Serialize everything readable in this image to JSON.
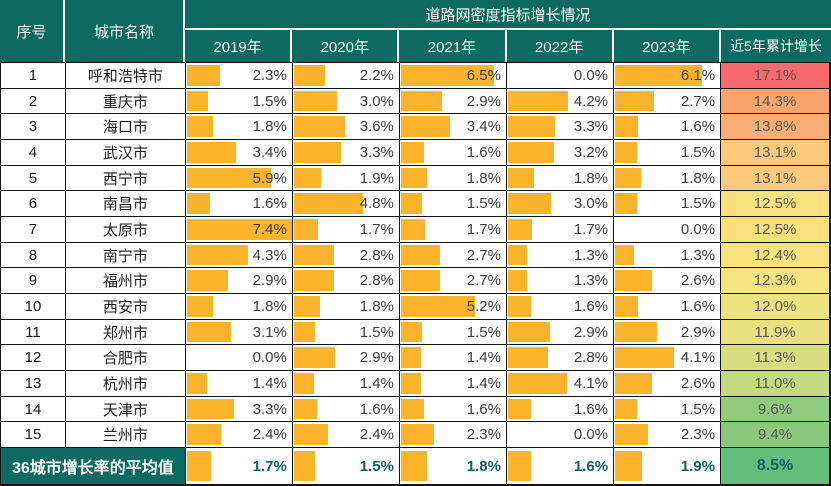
{
  "title": "道路网密度指标增长情况",
  "columns": {
    "index": "序号",
    "city": "城市名称",
    "years": [
      "2019年",
      "2020年",
      "2021年",
      "2022年",
      "2023年"
    ],
    "cumulative": "近5年累计增长"
  },
  "colors": {
    "header_bg": "#0C6A62",
    "bar": "#FBB42C",
    "value_text": "#3E3E3E",
    "cumulative_text": "#595959",
    "average_value_text": "#0E6065"
  },
  "bar_scale_max": 7.4,
  "rows": [
    {
      "no": "1",
      "city": "呼和浩特市",
      "values": [
        2.3,
        2.2,
        6.5,
        0.0,
        6.1
      ],
      "labels": [
        "2.3%",
        "2.2%",
        "6.5%",
        "0.0%",
        "6.1%"
      ],
      "cum_label": "17.1%",
      "cum_bg": "#F8696B"
    },
    {
      "no": "2",
      "city": "重庆市",
      "values": [
        1.5,
        3.0,
        2.9,
        4.2,
        2.7
      ],
      "labels": [
        "1.5%",
        "3.0%",
        "2.9%",
        "4.2%",
        "2.7%"
      ],
      "cum_label": "14.3%",
      "cum_bg": "#F9A36D"
    },
    {
      "no": "3",
      "city": "海口市",
      "values": [
        1.8,
        3.6,
        3.4,
        3.3,
        1.6
      ],
      "labels": [
        "1.8%",
        "3.6%",
        "3.4%",
        "3.3%",
        "1.6%"
      ],
      "cum_label": "13.8%",
      "cum_bg": "#FAAD74"
    },
    {
      "no": "4",
      "city": "武汉市",
      "values": [
        3.4,
        3.3,
        1.6,
        3.2,
        1.5
      ],
      "labels": [
        "3.4%",
        "3.3%",
        "1.6%",
        "3.2%",
        "1.5%"
      ],
      "cum_label": "13.1%",
      "cum_bg": "#FCCA7A"
    },
    {
      "no": "5",
      "city": "西宁市",
      "values": [
        5.9,
        1.9,
        1.8,
        1.8,
        1.8
      ],
      "labels": [
        "5.9%",
        "1.9%",
        "1.8%",
        "1.8%",
        "1.8%"
      ],
      "cum_label": "13.1%",
      "cum_bg": "#FCCA7A"
    },
    {
      "no": "6",
      "city": "南昌市",
      "values": [
        1.6,
        4.8,
        1.5,
        3.0,
        1.5
      ],
      "labels": [
        "1.6%",
        "4.8%",
        "1.5%",
        "3.0%",
        "1.5%"
      ],
      "cum_label": "12.5%",
      "cum_bg": "#FBE07E"
    },
    {
      "no": "7",
      "city": "太原市",
      "values": [
        7.4,
        1.7,
        1.7,
        1.7,
        0.0
      ],
      "labels": [
        "7.4%",
        "1.7%",
        "1.7%",
        "1.7%",
        "0.0%"
      ],
      "cum_label": "12.5%",
      "cum_bg": "#FBE07E"
    },
    {
      "no": "8",
      "city": "南宁市",
      "values": [
        4.3,
        2.8,
        2.7,
        1.3,
        1.3
      ],
      "labels": [
        "4.3%",
        "2.8%",
        "2.7%",
        "1.3%",
        "1.3%"
      ],
      "cum_label": "12.4%",
      "cum_bg": "#FAE37F"
    },
    {
      "no": "9",
      "city": "福州市",
      "values": [
        2.9,
        2.8,
        2.7,
        1.3,
        2.6
      ],
      "labels": [
        "2.9%",
        "2.8%",
        "2.7%",
        "1.3%",
        "2.6%"
      ],
      "cum_label": "12.3%",
      "cum_bg": "#F7E37F"
    },
    {
      "no": "10",
      "city": "西安市",
      "values": [
        1.8,
        1.8,
        5.2,
        1.6,
        1.6
      ],
      "labels": [
        "1.8%",
        "1.8%",
        "5.2%",
        "1.6%",
        "1.6%"
      ],
      "cum_label": "12.0%",
      "cum_bg": "#EFE281"
    },
    {
      "no": "11",
      "city": "郑州市",
      "values": [
        3.1,
        1.5,
        1.5,
        2.9,
        2.9
      ],
      "labels": [
        "3.1%",
        "1.5%",
        "1.5%",
        "2.9%",
        "2.9%"
      ],
      "cum_label": "11.9%",
      "cum_bg": "#EBE081"
    },
    {
      "no": "12",
      "city": "合肥市",
      "values": [
        0.0,
        2.9,
        1.4,
        2.8,
        4.1
      ],
      "labels": [
        "0.0%",
        "2.9%",
        "1.4%",
        "2.8%",
        "4.1%"
      ],
      "cum_label": "11.3%",
      "cum_bg": "#D7DE81"
    },
    {
      "no": "13",
      "city": "杭州市",
      "values": [
        1.4,
        1.4,
        1.4,
        4.1,
        2.6
      ],
      "labels": [
        "1.4%",
        "1.4%",
        "1.4%",
        "4.1%",
        "2.6%"
      ],
      "cum_label": "11.0%",
      "cum_bg": "#C3DA80"
    },
    {
      "no": "14",
      "city": "天津市",
      "values": [
        3.3,
        1.6,
        1.6,
        1.6,
        1.5
      ],
      "labels": [
        "3.3%",
        "1.6%",
        "1.6%",
        "1.6%",
        "1.5%"
      ],
      "cum_label": "9.6%",
      "cum_bg": "#90CB7D"
    },
    {
      "no": "15",
      "city": "兰州市",
      "values": [
        2.4,
        2.4,
        2.3,
        0.0,
        2.3
      ],
      "labels": [
        "2.4%",
        "2.4%",
        "2.3%",
        "0.0%",
        "2.3%"
      ],
      "cum_label": "9.4%",
      "cum_bg": "#8AC97C"
    }
  ],
  "average_row": {
    "label": "36城市增长率的平均值",
    "values": [
      1.7,
      1.5,
      1.8,
      1.6,
      1.9
    ],
    "labels": [
      "1.7%",
      "1.5%",
      "1.8%",
      "1.6%",
      "1.9%"
    ],
    "cum_label": "8.5%",
    "cum_bg": "#63BE7B"
  },
  "chart_data": {
    "type": "table",
    "title": "道路网密度指标增长情况",
    "columns": [
      "序号",
      "城市名称",
      "2019年",
      "2020年",
      "2021年",
      "2022年",
      "2023年",
      "近5年累计增长"
    ],
    "bar_max_percent": 7.4,
    "rows": [
      [
        1,
        "呼和浩特市",
        2.3,
        2.2,
        6.5,
        0.0,
        6.1,
        17.1
      ],
      [
        2,
        "重庆市",
        1.5,
        3.0,
        2.9,
        4.2,
        2.7,
        14.3
      ],
      [
        3,
        "海口市",
        1.8,
        3.6,
        3.4,
        3.3,
        1.6,
        13.8
      ],
      [
        4,
        "武汉市",
        3.4,
        3.3,
        1.6,
        3.2,
        1.5,
        13.1
      ],
      [
        5,
        "西宁市",
        5.9,
        1.9,
        1.8,
        1.8,
        1.8,
        13.1
      ],
      [
        6,
        "南昌市",
        1.6,
        4.8,
        1.5,
        3.0,
        1.5,
        12.5
      ],
      [
        7,
        "太原市",
        7.4,
        1.7,
        1.7,
        1.7,
        0.0,
        12.5
      ],
      [
        8,
        "南宁市",
        4.3,
        2.8,
        2.7,
        1.3,
        1.3,
        12.4
      ],
      [
        9,
        "福州市",
        2.9,
        2.8,
        2.7,
        1.3,
        2.6,
        12.3
      ],
      [
        10,
        "西安市",
        1.8,
        1.8,
        5.2,
        1.6,
        1.6,
        12.0
      ],
      [
        11,
        "郑州市",
        3.1,
        1.5,
        1.5,
        2.9,
        2.9,
        11.9
      ],
      [
        12,
        "合肥市",
        0.0,
        2.9,
        1.4,
        2.8,
        4.1,
        11.3
      ],
      [
        13,
        "杭州市",
        1.4,
        1.4,
        1.4,
        4.1,
        2.6,
        11.0
      ],
      [
        14,
        "天津市",
        3.3,
        1.6,
        1.6,
        1.6,
        1.5,
        9.6
      ],
      [
        15,
        "兰州市",
        2.4,
        2.4,
        2.3,
        0.0,
        2.3,
        9.4
      ],
      [
        "均值",
        "36城市增长率的平均值",
        1.7,
        1.5,
        1.8,
        1.6,
        1.9,
        8.5
      ]
    ]
  }
}
